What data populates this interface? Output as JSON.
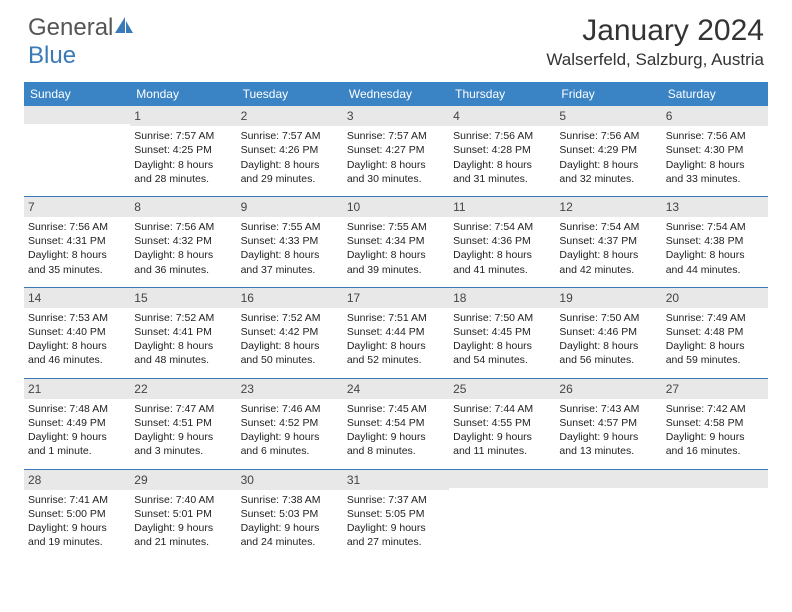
{
  "logo": {
    "part1": "General",
    "part2": "Blue"
  },
  "title": "January 2024",
  "location": "Walserfeld, Salzburg, Austria",
  "colors": {
    "header_bg": "#3a83c4",
    "daynum_bg": "#e8e8e8",
    "rule": "#3a7ab8",
    "logo_blue": "#3a7ab8",
    "text": "#222222"
  },
  "dow": [
    "Sunday",
    "Monday",
    "Tuesday",
    "Wednesday",
    "Thursday",
    "Friday",
    "Saturday"
  ],
  "weeks": [
    [
      {
        "n": "",
        "sr": "",
        "ss": "",
        "dl": ""
      },
      {
        "n": "1",
        "sr": "7:57 AM",
        "ss": "4:25 PM",
        "dl": "8 hours and 28 minutes."
      },
      {
        "n": "2",
        "sr": "7:57 AM",
        "ss": "4:26 PM",
        "dl": "8 hours and 29 minutes."
      },
      {
        "n": "3",
        "sr": "7:57 AM",
        "ss": "4:27 PM",
        "dl": "8 hours and 30 minutes."
      },
      {
        "n": "4",
        "sr": "7:56 AM",
        "ss": "4:28 PM",
        "dl": "8 hours and 31 minutes."
      },
      {
        "n": "5",
        "sr": "7:56 AM",
        "ss": "4:29 PM",
        "dl": "8 hours and 32 minutes."
      },
      {
        "n": "6",
        "sr": "7:56 AM",
        "ss": "4:30 PM",
        "dl": "8 hours and 33 minutes."
      }
    ],
    [
      {
        "n": "7",
        "sr": "7:56 AM",
        "ss": "4:31 PM",
        "dl": "8 hours and 35 minutes."
      },
      {
        "n": "8",
        "sr": "7:56 AM",
        "ss": "4:32 PM",
        "dl": "8 hours and 36 minutes."
      },
      {
        "n": "9",
        "sr": "7:55 AM",
        "ss": "4:33 PM",
        "dl": "8 hours and 37 minutes."
      },
      {
        "n": "10",
        "sr": "7:55 AM",
        "ss": "4:34 PM",
        "dl": "8 hours and 39 minutes."
      },
      {
        "n": "11",
        "sr": "7:54 AM",
        "ss": "4:36 PM",
        "dl": "8 hours and 41 minutes."
      },
      {
        "n": "12",
        "sr": "7:54 AM",
        "ss": "4:37 PM",
        "dl": "8 hours and 42 minutes."
      },
      {
        "n": "13",
        "sr": "7:54 AM",
        "ss": "4:38 PM",
        "dl": "8 hours and 44 minutes."
      }
    ],
    [
      {
        "n": "14",
        "sr": "7:53 AM",
        "ss": "4:40 PM",
        "dl": "8 hours and 46 minutes."
      },
      {
        "n": "15",
        "sr": "7:52 AM",
        "ss": "4:41 PM",
        "dl": "8 hours and 48 minutes."
      },
      {
        "n": "16",
        "sr": "7:52 AM",
        "ss": "4:42 PM",
        "dl": "8 hours and 50 minutes."
      },
      {
        "n": "17",
        "sr": "7:51 AM",
        "ss": "4:44 PM",
        "dl": "8 hours and 52 minutes."
      },
      {
        "n": "18",
        "sr": "7:50 AM",
        "ss": "4:45 PM",
        "dl": "8 hours and 54 minutes."
      },
      {
        "n": "19",
        "sr": "7:50 AM",
        "ss": "4:46 PM",
        "dl": "8 hours and 56 minutes."
      },
      {
        "n": "20",
        "sr": "7:49 AM",
        "ss": "4:48 PM",
        "dl": "8 hours and 59 minutes."
      }
    ],
    [
      {
        "n": "21",
        "sr": "7:48 AM",
        "ss": "4:49 PM",
        "dl": "9 hours and 1 minute."
      },
      {
        "n": "22",
        "sr": "7:47 AM",
        "ss": "4:51 PM",
        "dl": "9 hours and 3 minutes."
      },
      {
        "n": "23",
        "sr": "7:46 AM",
        "ss": "4:52 PM",
        "dl": "9 hours and 6 minutes."
      },
      {
        "n": "24",
        "sr": "7:45 AM",
        "ss": "4:54 PM",
        "dl": "9 hours and 8 minutes."
      },
      {
        "n": "25",
        "sr": "7:44 AM",
        "ss": "4:55 PM",
        "dl": "9 hours and 11 minutes."
      },
      {
        "n": "26",
        "sr": "7:43 AM",
        "ss": "4:57 PM",
        "dl": "9 hours and 13 minutes."
      },
      {
        "n": "27",
        "sr": "7:42 AM",
        "ss": "4:58 PM",
        "dl": "9 hours and 16 minutes."
      }
    ],
    [
      {
        "n": "28",
        "sr": "7:41 AM",
        "ss": "5:00 PM",
        "dl": "9 hours and 19 minutes."
      },
      {
        "n": "29",
        "sr": "7:40 AM",
        "ss": "5:01 PM",
        "dl": "9 hours and 21 minutes."
      },
      {
        "n": "30",
        "sr": "7:38 AM",
        "ss": "5:03 PM",
        "dl": "9 hours and 24 minutes."
      },
      {
        "n": "31",
        "sr": "7:37 AM",
        "ss": "5:05 PM",
        "dl": "9 hours and 27 minutes."
      },
      {
        "n": "",
        "sr": "",
        "ss": "",
        "dl": ""
      },
      {
        "n": "",
        "sr": "",
        "ss": "",
        "dl": ""
      },
      {
        "n": "",
        "sr": "",
        "ss": "",
        "dl": ""
      }
    ]
  ],
  "labels": {
    "sunrise": "Sunrise: ",
    "sunset": "Sunset: ",
    "daylight": "Daylight: "
  }
}
